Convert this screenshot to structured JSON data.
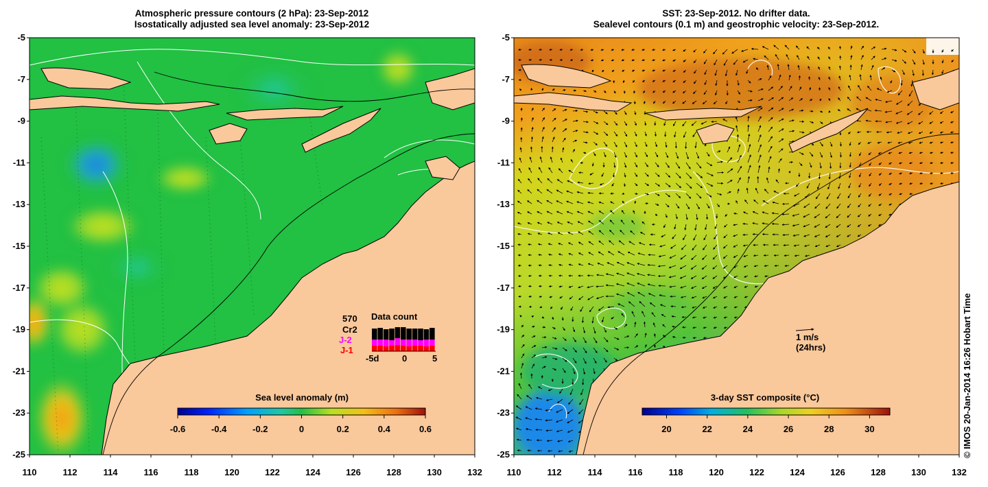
{
  "left_panel": {
    "title_line1": "Atmospheric pressure contours (2 hPa): 23-Sep-2012",
    "title_line2": "Isostatically adjusted sea level anomaly: 23-Sep-2012",
    "y_ticks": [
      "-5",
      "-7",
      "-9",
      "-11",
      "-13",
      "-15",
      "-17",
      "-19",
      "-21",
      "-23",
      "-25"
    ],
    "x_ticks": [
      "110",
      "112",
      "114",
      "116",
      "118",
      "120",
      "122",
      "124",
      "126",
      "128",
      "130",
      "132"
    ],
    "colorbar": {
      "label": "Sea level anomaly (m)",
      "ticks": [
        "-0.6",
        "-0.4",
        "-0.2",
        "0",
        "0.2",
        "0.4",
        "0.6"
      ],
      "range": [
        -0.6,
        0.6
      ]
    },
    "data_count": {
      "title": "Data count",
      "total": "570",
      "series": [
        {
          "name": "Cr2",
          "color": "#000000"
        },
        {
          "name": "J-2",
          "color": "#ff00ff"
        },
        {
          "name": "J-1",
          "color": "#ff0000"
        }
      ],
      "axis_ticks": [
        "-5d",
        "0",
        "5"
      ]
    }
  },
  "right_panel": {
    "title_line1": "SST: 23-Sep-2012. No drifter data.",
    "title_line2": "Sealevel contours (0.1 m) and geostrophic velocity: 23-Sep-2012.",
    "y_ticks": [
      "-5",
      "-7",
      "-9",
      "-11",
      "-13",
      "-15",
      "-17",
      "-19",
      "-21",
      "-23",
      "-25"
    ],
    "x_ticks": [
      "110",
      "112",
      "114",
      "116",
      "118",
      "120",
      "122",
      "124",
      "126",
      "128",
      "130",
      "132"
    ],
    "colorbar": {
      "label": "3-day SST composite (°C)",
      "ticks": [
        "20",
        "22",
        "24",
        "26",
        "28",
        "30"
      ],
      "range": [
        18.8,
        31
      ]
    },
    "velocity_legend": {
      "line1": "1 m/s",
      "line2": "(24hrs)"
    }
  },
  "credit": "© IMOS 20-Jan-2014 16:26 Hobart Time",
  "colors": {
    "land": "#f9c89b",
    "sea_green": "#22c043",
    "sst_orange": "#f5a020",
    "contour": "#ffffff",
    "coast": "#000000"
  }
}
